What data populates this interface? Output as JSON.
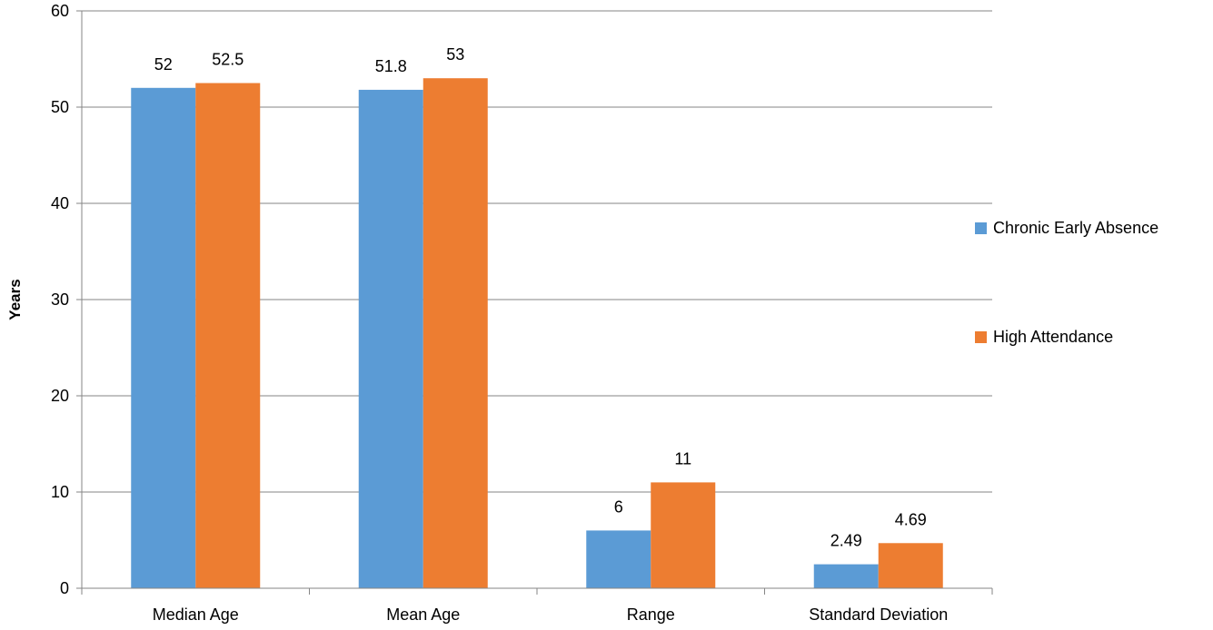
{
  "chart_data": {
    "type": "bar",
    "title": "",
    "xlabel": "",
    "ylabel": "Years",
    "ylim": [
      0,
      60
    ],
    "yticks": [
      0,
      10,
      20,
      30,
      40,
      50,
      60
    ],
    "grid": true,
    "legend_position": "right",
    "categories": [
      "Median Age",
      "Mean Age",
      "Range",
      "Standard Deviation"
    ],
    "series": [
      {
        "name": "Chronic Early Absence",
        "color": "#5B9BD5",
        "values": [
          52,
          51.8,
          6,
          2.49
        ],
        "labels": [
          "52",
          "51.8",
          "6",
          "2.49"
        ]
      },
      {
        "name": "High Attendance",
        "color": "#ED7D31",
        "values": [
          52.5,
          53,
          11,
          4.69
        ],
        "labels": [
          "52.5",
          "53",
          "11",
          "4.69"
        ]
      }
    ]
  }
}
